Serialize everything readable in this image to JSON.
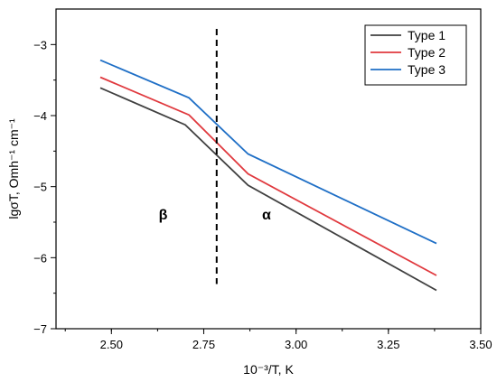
{
  "chart_data": {
    "type": "line",
    "xlabel": "10⁻³/T, K",
    "ylabel": "lgσT, Omh⁻¹ cm⁻¹",
    "xlim": [
      2.35,
      3.5
    ],
    "ylim": [
      -7,
      -2.5
    ],
    "x_ticks": [
      2.5,
      2.75,
      3.0,
      3.25,
      3.5
    ],
    "x_tick_labels": [
      "2.50",
      "2.75",
      "3.00",
      "3.25",
      "3.50"
    ],
    "y_ticks": [
      -7,
      -6,
      -5,
      -4,
      -3
    ],
    "y_tick_labels": [
      "−7",
      "−6",
      "−5",
      "−4",
      "−3"
    ],
    "grid": false,
    "legend_position": "top-right",
    "series": [
      {
        "name": "Type 1",
        "color": "#404040",
        "x": [
          2.47,
          2.7,
          2.87,
          3.38
        ],
        "y": [
          -3.61,
          -4.13,
          -4.98,
          -6.46
        ]
      },
      {
        "name": "Type 2",
        "color": "#e0393e",
        "x": [
          2.47,
          2.71,
          2.87,
          3.38
        ],
        "y": [
          -3.46,
          -3.99,
          -4.82,
          -6.25
        ]
      },
      {
        "name": "Type 3",
        "color": "#1f6fc6",
        "x": [
          2.47,
          2.71,
          2.87,
          3.38
        ],
        "y": [
          -3.22,
          -3.75,
          -4.54,
          -5.8
        ]
      }
    ],
    "vertical_marker": {
      "x": 2.785,
      "y_range": [
        -6.37,
        -2.78
      ],
      "style": "dashed"
    },
    "annotations": [
      {
        "text": "β",
        "x": 2.64,
        "y": -5.46
      },
      {
        "text": "α",
        "x": 2.92,
        "y": -5.46
      }
    ]
  }
}
